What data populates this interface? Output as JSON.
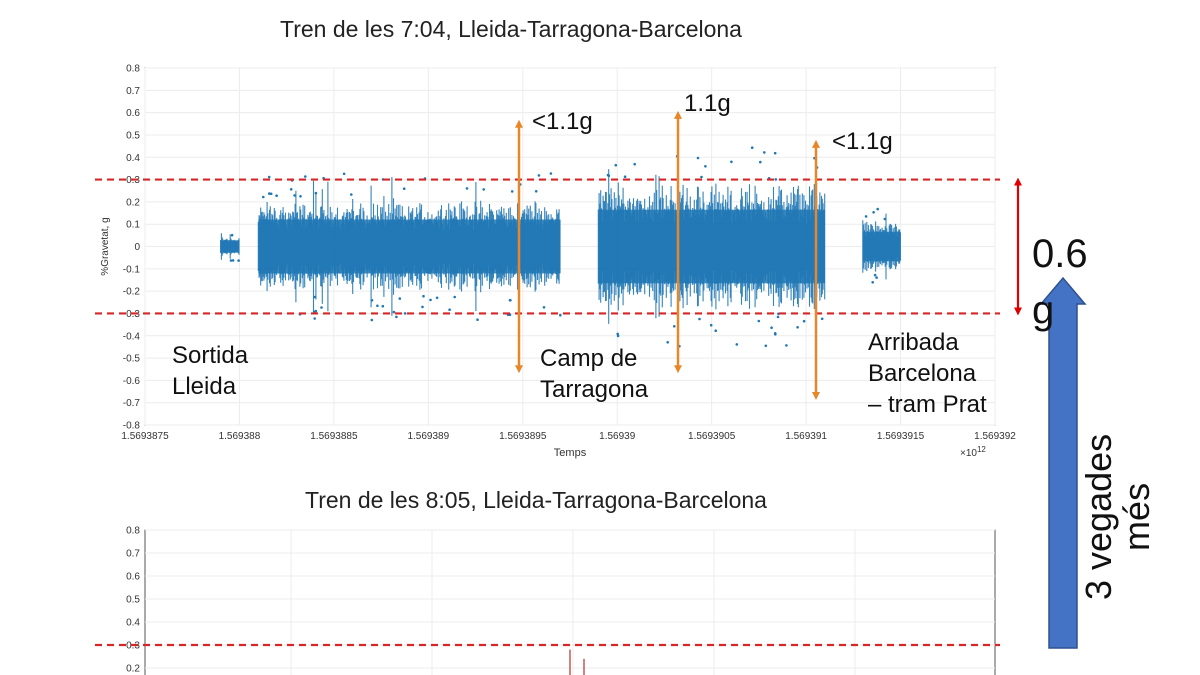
{
  "chart_data": [
    {
      "type": "scatter",
      "title": "Tren de les 7:04, Lleida-Tarragona-Barcelona",
      "xlabel": "Temps",
      "ylabel": "%Gravetat, g",
      "x_exponent_label": "×10",
      "x_exponent_power": "12",
      "x_tick_labels": [
        "1.5693875",
        "1.569388",
        "1.5693885",
        "1.569389",
        "1.5693895",
        "1.56939",
        "1.5693905",
        "1.569391",
        "1.5693915",
        "1.569392"
      ],
      "y_tick_labels": [
        "0.8",
        "0.7",
        "0.6",
        "0.5",
        "0.4",
        "0.3",
        "0.2",
        "0.1",
        "0",
        "-0.1",
        "-0.2",
        "-0.3",
        "-0.4",
        "-0.5",
        "-0.6",
        "-0.7",
        "-0.8"
      ],
      "xlim": [
        1.5693875,
        1.569392
      ],
      "ylim": [
        -0.8,
        0.8
      ],
      "threshold_lines": [
        0.3,
        -0.3
      ],
      "series_color": "#1f77b4",
      "threshold_color": "#d62728",
      "segments": [
        {
          "x_start": 1.5693879,
          "x_end": 1.569388,
          "amplitude": 0.05
        },
        {
          "x_start": 1.5693881,
          "x_end": 1.5693897,
          "amplitude": 0.22
        },
        {
          "x_start": 1.5693899,
          "x_end": 1.5693911,
          "amplitude": 0.3
        },
        {
          "x_start": 1.5693913,
          "x_end": 1.5693915,
          "amplitude": 0.12
        }
      ],
      "peak_markers": [
        {
          "x": 1.5693895,
          "top": 0.55,
          "bottom": -0.55,
          "label": "<1.1g"
        },
        {
          "x": 1.56939,
          "top": 0.59,
          "bottom": -0.55,
          "label": "1.1g"
        },
        {
          "x": 1.569391,
          "top": 0.46,
          "bottom": -0.67,
          "label": "<1.1g"
        }
      ],
      "region_labels": [
        {
          "lines": [
            "Sortida",
            "Lleida"
          ]
        },
        {
          "lines": [
            "Camp de",
            "Tarragona"
          ]
        },
        {
          "lines": [
            "Arribada",
            "Barcelona",
            "– tram Prat"
          ]
        }
      ],
      "band_label": "0.6 g"
    },
    {
      "type": "scatter",
      "title": "Tren de les 8:05, Lleida-Tarragona-Barcelona",
      "y_tick_labels": [
        "0.8",
        "0.7",
        "0.6",
        "0.5",
        "0.4",
        "0.3",
        "0.2"
      ],
      "ylim": [
        0.15,
        0.8
      ],
      "threshold_lines": [
        0.3
      ],
      "series_color": "#b03030"
    }
  ],
  "side_annotation": {
    "lines": [
      "3 vegades",
      "més"
    ],
    "arrow_color": "#4472c4",
    "band_arrow_color": "#e00000",
    "marker_arrow_color": "#e8872a"
  }
}
